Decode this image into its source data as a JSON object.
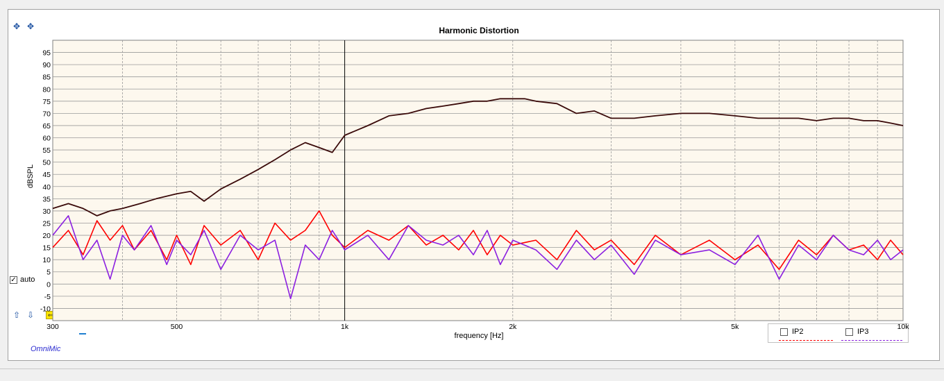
{
  "window": {
    "title": "Harmonic Distortion",
    "brand": "OmniMic",
    "auto_label": "auto",
    "auto_checked": true
  },
  "legend": [
    {
      "name": "IP2",
      "color": "#ff0000",
      "checked": false
    },
    {
      "name": "IP3",
      "color": "#8b1fe0",
      "checked": false
    }
  ],
  "chart_data": {
    "type": "line",
    "title": "Harmonic Distortion",
    "xlabel": "frequency [Hz]",
    "ylabel": "dBSPL",
    "xscale": "log",
    "xlim": [
      300,
      10000
    ],
    "ylim": [
      -15,
      100
    ],
    "grid": true,
    "x_tick_labels": [
      {
        "value": 300,
        "label": "300"
      },
      {
        "value": 500,
        "label": "500"
      },
      {
        "value": 1000,
        "label": "1k"
      },
      {
        "value": 2000,
        "label": "2k"
      },
      {
        "value": 5000,
        "label": "5k"
      },
      {
        "value": 10000,
        "label": "10k"
      }
    ],
    "y_tick_labels": [
      "95",
      "90",
      "85",
      "80",
      "75",
      "70",
      "65",
      "60",
      "55",
      "50",
      "45",
      "40",
      "35",
      "30",
      "25",
      "20",
      "15",
      "10",
      "5",
      "0",
      "-5",
      "-10"
    ],
    "y_tick_values": [
      95,
      90,
      85,
      80,
      75,
      70,
      65,
      60,
      55,
      50,
      45,
      40,
      35,
      30,
      25,
      20,
      15,
      10,
      5,
      0,
      -5,
      -10
    ],
    "series": [
      {
        "color": "#3a0a0a",
        "x": [
          300,
          320,
          340,
          360,
          380,
          400,
          430,
          460,
          500,
          530,
          560,
          600,
          650,
          700,
          750,
          800,
          850,
          900,
          950,
          1000,
          1100,
          1200,
          1300,
          1400,
          1500,
          1600,
          1700,
          1800,
          1900,
          2000,
          2100,
          2200,
          2400,
          2600,
          2800,
          3000,
          3300,
          3600,
          4000,
          4500,
          5000,
          5500,
          6000,
          6500,
          7000,
          7500,
          8000,
          8500,
          9000,
          9500,
          10000
        ],
        "values": [
          31,
          33,
          31,
          28,
          30,
          31,
          33,
          35,
          37,
          38,
          34,
          39,
          43,
          47,
          51,
          55,
          58,
          56,
          54,
          61,
          65,
          69,
          70,
          72,
          73,
          74,
          75,
          75,
          76,
          76,
          76,
          75,
          74,
          70,
          71,
          68,
          68,
          69,
          70,
          70,
          69,
          68,
          68,
          68,
          67,
          68,
          68,
          67,
          67,
          66,
          65
        ]
      },
      {
        "color": "#ff0000",
        "x": [
          300,
          320,
          340,
          360,
          380,
          400,
          420,
          450,
          480,
          500,
          530,
          560,
          600,
          650,
          700,
          750,
          800,
          850,
          900,
          950,
          1000,
          1100,
          1200,
          1300,
          1400,
          1500,
          1600,
          1700,
          1800,
          1900,
          2000,
          2200,
          2400,
          2600,
          2800,
          3000,
          3300,
          3600,
          4000,
          4500,
          5000,
          5500,
          6000,
          6500,
          7000,
          7500,
          8000,
          8500,
          9000,
          9500,
          10000
        ],
        "values": [
          15,
          22,
          12,
          26,
          18,
          24,
          14,
          22,
          10,
          20,
          8,
          24,
          16,
          22,
          10,
          25,
          18,
          22,
          30,
          20,
          15,
          22,
          18,
          24,
          16,
          20,
          14,
          22,
          12,
          20,
          16,
          18,
          10,
          22,
          14,
          18,
          8,
          20,
          12,
          18,
          10,
          16,
          6,
          18,
          12,
          20,
          14,
          16,
          10,
          18,
          12
        ]
      },
      {
        "color": "#8b1fe0",
        "x": [
          300,
          320,
          340,
          360,
          380,
          400,
          420,
          450,
          480,
          500,
          530,
          560,
          600,
          650,
          700,
          750,
          800,
          850,
          900,
          950,
          1000,
          1100,
          1200,
          1300,
          1400,
          1500,
          1600,
          1700,
          1800,
          1900,
          2000,
          2200,
          2400,
          2600,
          2800,
          3000,
          3300,
          3600,
          4000,
          4500,
          5000,
          5500,
          6000,
          6500,
          7000,
          7500,
          8000,
          8500,
          9000,
          9500,
          10000
        ],
        "values": [
          20,
          28,
          10,
          18,
          2,
          20,
          14,
          24,
          8,
          18,
          12,
          22,
          6,
          20,
          14,
          18,
          -6,
          16,
          10,
          22,
          14,
          20,
          10,
          24,
          18,
          16,
          20,
          12,
          22,
          8,
          18,
          14,
          6,
          18,
          10,
          16,
          4,
          18,
          12,
          14,
          8,
          20,
          2,
          16,
          10,
          20,
          14,
          12,
          18,
          10,
          14
        ]
      }
    ]
  }
}
